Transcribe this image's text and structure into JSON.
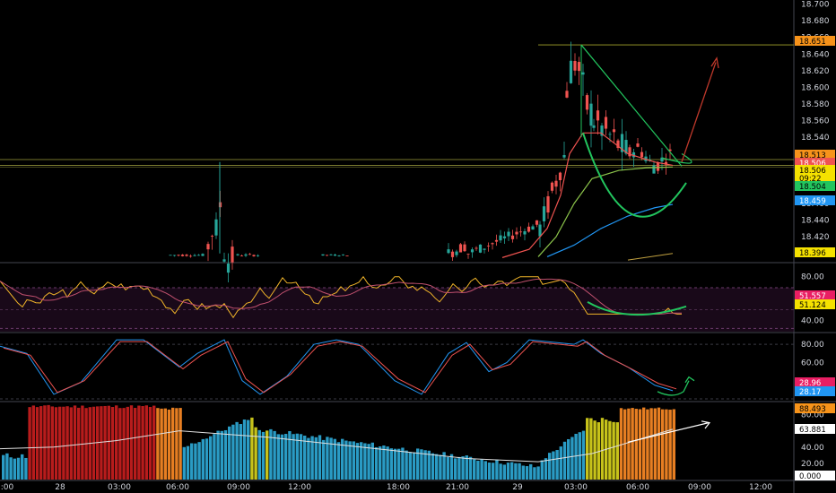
{
  "price_axis": {
    "ticks": [
      "18.700",
      "18.680",
      "18.660",
      "18.640",
      "18.620",
      "18.600",
      "18.580",
      "18.560",
      "18.540",
      "18.520",
      "18.480",
      "18.460",
      "18.440",
      "18.420"
    ],
    "badges": [
      {
        "text": "18.651",
        "bg": "#f7931a",
        "fg": "#000000"
      },
      {
        "text": "18.513",
        "bg": "#f7931a",
        "fg": "#000000"
      },
      {
        "text": "18.506",
        "bg": "#ef5350",
        "fg": "#ffffff"
      },
      {
        "text": "18.506",
        "bg": "#f5e100",
        "fg": "#000000"
      },
      {
        "text": "09:22",
        "bg": "#f5e100",
        "fg": "#000000"
      },
      {
        "text": "18.504",
        "bg": "#22c55e",
        "fg": "#000000"
      },
      {
        "text": "18.459",
        "bg": "#2196f3",
        "fg": "#ffffff"
      },
      {
        "text": "18.396",
        "bg": "#f5e100",
        "fg": "#000000"
      }
    ]
  },
  "rsi_axis": {
    "ticks": [
      "80.00",
      "40.00"
    ],
    "badges": [
      {
        "text": "51.557",
        "bg": "#e91e63",
        "fg": "#ffffff"
      },
      {
        "text": "51.124",
        "bg": "#f5e100",
        "fg": "#000000"
      }
    ]
  },
  "stoch_axis": {
    "ticks": [
      "80.00",
      "60.00",
      "40.00"
    ],
    "badges": [
      {
        "text": "28.96",
        "bg": "#e91e63",
        "fg": "#ffffff"
      },
      {
        "text": "28.17",
        "bg": "#2196f3",
        "fg": "#ffffff"
      }
    ]
  },
  "vol_axis": {
    "ticks": [
      "80.00",
      "40.00",
      "20.00"
    ],
    "badges": [
      {
        "text": "88.493",
        "bg": "#f7931a",
        "fg": "#000000"
      },
      {
        "text": "63.881",
        "bg": "#ffffff",
        "fg": "#000000"
      },
      {
        "text": "0.000",
        "bg": "#ffffff",
        "fg": "#000000"
      }
    ]
  },
  "time_axis": {
    "labels": [
      ":00",
      "28",
      "03:00",
      "06:00",
      "09:00",
      "12:00",
      "18:00",
      "21:00",
      "29",
      "03:00",
      "06:00",
      "09:00",
      "12:00"
    ]
  },
  "colors": {
    "bull": "#26a69a",
    "bear": "#ef5350",
    "ma_red": "#ef5350",
    "ma_green": "#8bc34a",
    "ma_blue": "#2196f3",
    "rsi": "#f0b429",
    "rsi_ma": "#9c27b0",
    "stoch_k": "#2196f3",
    "stoch_d": "#ef5350",
    "vol_red": "#b71c1c",
    "vol_orange": "#e67e22",
    "vol_yellow": "#c6c21a",
    "vol_blue": "#2a9bc4",
    "drawing_green": "#22c55e"
  },
  "chart_data": [
    {
      "type": "line",
      "title": "",
      "ylim": [
        18.396,
        18.7
      ],
      "x": [
        "27 23:00",
        "28 00:00",
        "28 03:00",
        "28 06:00",
        "28 07:30",
        "28 08:00",
        "28 09:00",
        "28 12:00",
        "28 18:00",
        "28 21:00",
        "29 00:00",
        "29 02:00",
        "29 03:00",
        "29 04:00",
        "29 05:00",
        "29 06:00",
        "29 07:00",
        "29 08:00"
      ],
      "series": [
        {
          "values": [
            18.4,
            18.4,
            18.4,
            18.4,
            18.44,
            18.51,
            18.4,
            18.4,
            18.4,
            18.4,
            18.42,
            18.45,
            18.65,
            18.58,
            18.55,
            18.52,
            18.51,
            18.506
          ]
        }
      ],
      "levels": [
        18.651,
        18.513,
        18.506,
        18.504,
        18.459,
        18.396
      ]
    },
    {
      "type": "line",
      "ylim": [
        30,
        90
      ],
      "series": [
        {
          "values": [
            75,
            40,
            60,
            58,
            70,
            52,
            64,
            56,
            74,
            55,
            70,
            50,
            68,
            58,
            52,
            51
          ]
        }
      ],
      "last_values": [
        51.557,
        51.124
      ]
    },
    {
      "type": "line",
      "ylim": [
        20,
        90
      ],
      "series": [
        {
          "values": [
            80,
            30,
            60,
            85,
            70,
            40,
            80,
            60,
            30,
            65,
            80,
            35,
            75,
            85,
            60,
            29
          ]
        }
      ],
      "last_values": [
        28.96,
        28.17
      ]
    },
    {
      "type": "bar",
      "ylim": [
        0,
        95
      ],
      "series": [
        {
          "values": [
            25,
            90,
            90,
            90,
            60,
            55,
            50,
            40,
            30,
            25,
            20,
            30,
            40,
            70,
            88,
            88
          ]
        }
      ],
      "last_values": [
        88.493,
        63.881,
        0.0
      ]
    }
  ]
}
